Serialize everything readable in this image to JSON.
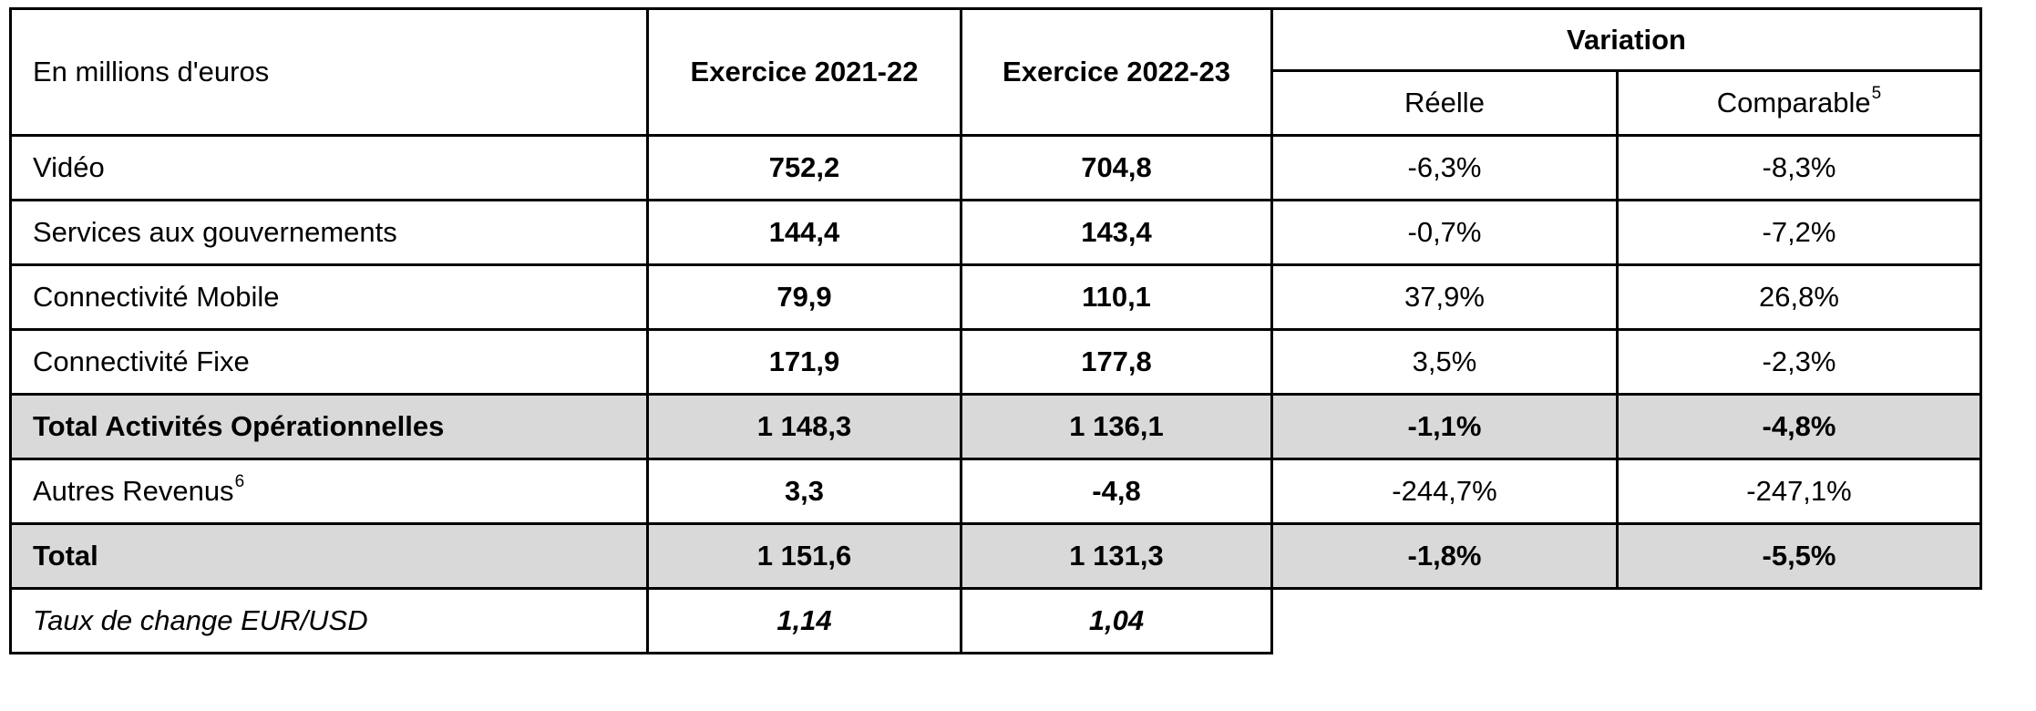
{
  "table": {
    "header": {
      "unit_label": "En millions d'euros",
      "col_2021": "Exercice 2021-22",
      "col_2022": "Exercice 2022-23",
      "variation": "Variation",
      "sub_reelle": "Réelle",
      "sub_comparable": "Comparable",
      "sub_comparable_sup": "5"
    },
    "rows": [
      {
        "label": "Vidéo",
        "label_sup": "",
        "val_2021": "752,2",
        "val_2022": "704,8",
        "var_reelle": "-6,3%",
        "var_comparable": "-8,3%",
        "emphasis": "normal"
      },
      {
        "label": "Services aux gouvernements",
        "label_sup": "",
        "val_2021": "144,4",
        "val_2022": "143,4",
        "var_reelle": "-0,7%",
        "var_comparable": "-7,2%",
        "emphasis": "normal"
      },
      {
        "label": "Connectivité Mobile",
        "label_sup": "",
        "val_2021": "79,9",
        "val_2022": "110,1",
        "var_reelle": "37,9%",
        "var_comparable": "26,8%",
        "emphasis": "normal"
      },
      {
        "label": "Connectivité Fixe",
        "label_sup": "",
        "val_2021": "171,9",
        "val_2022": "177,8",
        "var_reelle": "3,5%",
        "var_comparable": "-2,3%",
        "emphasis": "normal"
      },
      {
        "label": "Total Activités Opérationnelles",
        "label_sup": "",
        "val_2021": "1 148,3",
        "val_2022": "1 136,1",
        "var_reelle": "-1,1%",
        "var_comparable": "-4,8%",
        "emphasis": "total"
      },
      {
        "label": "Autres Revenus",
        "label_sup": "6",
        "val_2021": "3,3",
        "val_2022": "-4,8",
        "var_reelle": "-244,7%",
        "var_comparable": "-247,1%",
        "emphasis": "normal"
      },
      {
        "label": "Total",
        "label_sup": "",
        "val_2021": "1 151,6",
        "val_2022": "1 131,3",
        "var_reelle": "-1,8%",
        "var_comparable": "-5,5%",
        "emphasis": "total"
      },
      {
        "label": "Taux de change EUR/USD",
        "label_sup": "",
        "val_2021": "1,14",
        "val_2022": "1,04",
        "var_reelle": null,
        "var_comparable": null,
        "emphasis": "rate"
      }
    ],
    "colors": {
      "highlight_row_bg": "#d9d9d9",
      "border": "#000000",
      "background": "#ffffff"
    }
  }
}
